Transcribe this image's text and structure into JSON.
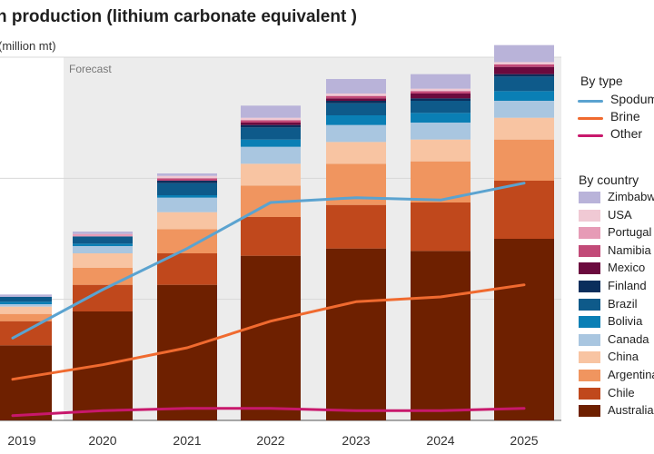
{
  "title": "n production (lithium carbonate equivalent )",
  "unit_label": "(million mt)",
  "forecast_label": "Forecast",
  "legend": {
    "by_type_title": "By type",
    "by_country_title": "By country"
  },
  "colors": {
    "Australia": "#6e2000",
    "Chile": "#c0481c",
    "Argentina": "#f0955f",
    "China": "#f8c4a2",
    "Canada": "#a9c6e0",
    "Bolivia": "#0a7fb5",
    "Brazil": "#0e5a8a",
    "Finland": "#0b2e5c",
    "Mexico": "#6b0a3e",
    "Namibia": "#c24a78",
    "Portugal": "#e69bb6",
    "USA": "#f0c9d4",
    "Zimbabwe": "#b9b3d9",
    "Spodumene": "#5ba3d0",
    "Brine": "#f06a2f",
    "Other": "#c8186c",
    "forecast_bg": "#ececec"
  },
  "chart_data": {
    "type": "bar",
    "stacked": true,
    "categories": [
      "2019",
      "2020",
      "2021",
      "2022",
      "2023",
      "2024",
      "2025"
    ],
    "forecast_from": "2019",
    "series": [
      {
        "name": "Australia",
        "values": [
          0.31,
          0.45,
          0.56,
          0.68,
          0.71,
          0.7,
          0.75
        ]
      },
      {
        "name": "Chile",
        "values": [
          0.1,
          0.11,
          0.13,
          0.16,
          0.18,
          0.2,
          0.24
        ]
      },
      {
        "name": "Argentina",
        "values": [
          0.03,
          0.07,
          0.1,
          0.13,
          0.17,
          0.17,
          0.17
        ]
      },
      {
        "name": "China",
        "values": [
          0.03,
          0.06,
          0.07,
          0.09,
          0.09,
          0.09,
          0.09
        ]
      },
      {
        "name": "Canada",
        "values": [
          0.01,
          0.03,
          0.06,
          0.07,
          0.07,
          0.07,
          0.07
        ]
      },
      {
        "name": "Bolivia",
        "values": [
          0.01,
          0.01,
          0.01,
          0.03,
          0.04,
          0.04,
          0.04
        ]
      },
      {
        "name": "Brazil",
        "values": [
          0.02,
          0.03,
          0.05,
          0.05,
          0.05,
          0.05,
          0.06
        ]
      },
      {
        "name": "Finland",
        "values": [
          0.0,
          0.0,
          0.01,
          0.01,
          0.01,
          0.01,
          0.01
        ]
      },
      {
        "name": "Mexico",
        "values": [
          0.0,
          0.0,
          0.0,
          0.01,
          0.01,
          0.02,
          0.03
        ]
      },
      {
        "name": "Namibia",
        "values": [
          0.0,
          0.0,
          0.01,
          0.01,
          0.01,
          0.01,
          0.01
        ]
      },
      {
        "name": "Portugal",
        "values": [
          0.0,
          0.01,
          0.0,
          0.0,
          0.0,
          0.0,
          0.0
        ]
      },
      {
        "name": "USA",
        "values": [
          0.0,
          0.0,
          0.01,
          0.01,
          0.01,
          0.01,
          0.01
        ]
      },
      {
        "name": "Zimbabwe",
        "values": [
          0.01,
          0.01,
          0.01,
          0.05,
          0.06,
          0.06,
          0.07
        ]
      }
    ],
    "lines": [
      {
        "name": "Spodumene",
        "values": [
          0.34,
          0.54,
          0.71,
          0.9,
          0.92,
          0.91,
          0.98
        ]
      },
      {
        "name": "Brine",
        "values": [
          0.17,
          0.23,
          0.3,
          0.41,
          0.49,
          0.51,
          0.56
        ]
      },
      {
        "name": "Other",
        "values": [
          0.02,
          0.04,
          0.05,
          0.05,
          0.04,
          0.04,
          0.05
        ]
      }
    ],
    "ylim": [
      0,
      1.5
    ],
    "grid": true,
    "xlabel": "",
    "ylabel": "(million mt)",
    "legend_position": "right"
  }
}
